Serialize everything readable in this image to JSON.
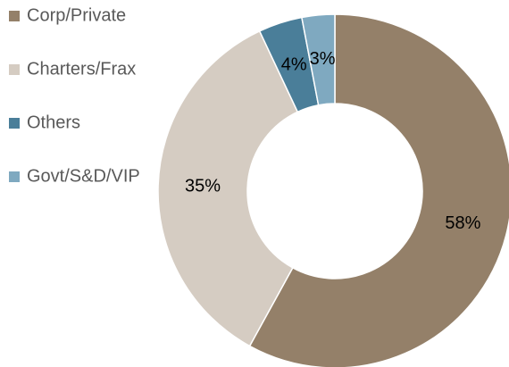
{
  "chart_data": {
    "type": "donut",
    "categories": [
      "Corp/Private",
      "Charters/Frax",
      "Others",
      "Govt/S&D/VIP"
    ],
    "values": [
      58,
      35,
      4,
      3
    ],
    "value_labels": [
      "58%",
      "35%",
      "4%",
      "3%"
    ],
    "colors": [
      "#948069",
      "#d5ccc2",
      "#4a7e99",
      "#7fa9c0"
    ],
    "legend": "left"
  }
}
